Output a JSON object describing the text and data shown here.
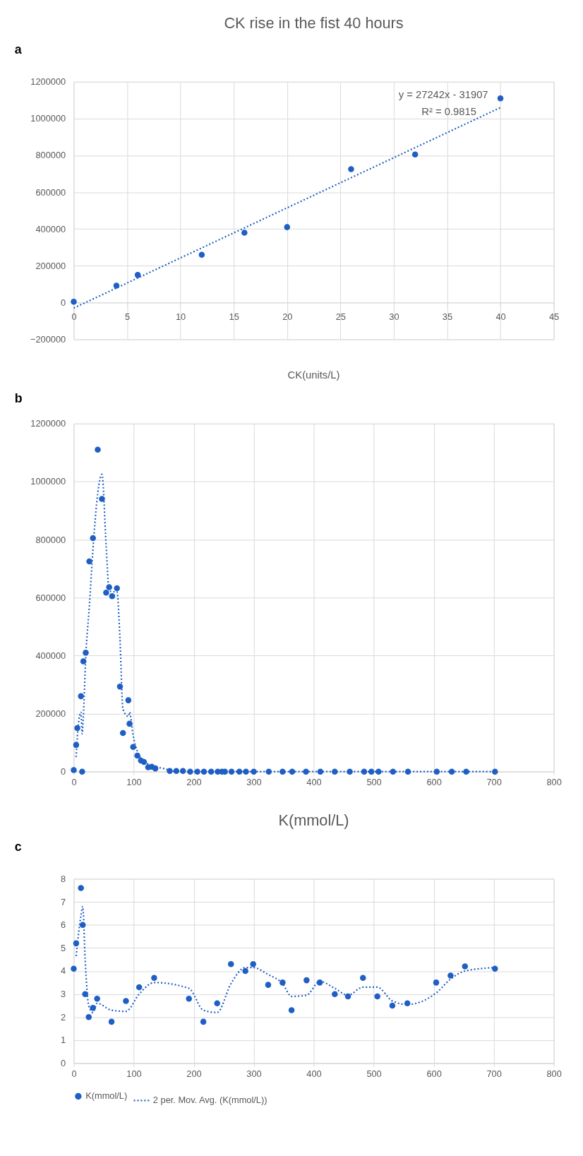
{
  "chart_data": [
    {
      "type": "scatter",
      "title": "CK rise in the fist 40 hours",
      "xlim": [
        0,
        45
      ],
      "xticks": [
        0,
        5,
        10,
        15,
        20,
        25,
        30,
        35,
        40,
        45
      ],
      "ylim": [
        -200000,
        1200000
      ],
      "yticks": [
        -200000,
        0,
        200000,
        400000,
        600000,
        800000,
        1000000,
        1200000
      ],
      "grid": true,
      "legend": false,
      "annotations": [
        "a",
        "y = 27242x - 31907",
        "R² = 0.9815"
      ],
      "series": [
        {
          "marker": "circle",
          "color": "#1f5fc4",
          "x": [
            0,
            4,
            6,
            12,
            16,
            20,
            26,
            32,
            40
          ],
          "values": [
            5000,
            92000,
            150000,
            260000,
            380000,
            410000,
            725000,
            805000,
            1110000
          ]
        },
        {
          "type": "line",
          "marker": "none",
          "color": "#1f5fc4",
          "line_style": "dotted",
          "x": [
            0,
            40
          ],
          "values": [
            -30000,
            1060000
          ]
        }
      ]
    },
    {
      "type": "scatter",
      "title": "CK(units/L)",
      "xlim": [
        0,
        800
      ],
      "xticks": [
        0,
        100,
        200,
        300,
        400,
        500,
        600,
        700,
        800
      ],
      "ylim": [
        0,
        1200000
      ],
      "yticks": [
        0,
        200000,
        400000,
        600000,
        800000,
        1000000,
        1200000
      ],
      "grid": true,
      "legend": false,
      "annotations": [
        "b"
      ],
      "series": [
        {
          "marker": "circle",
          "color": "#1f5fc4",
          "x": [
            0,
            4,
            6,
            12,
            14,
            16,
            20,
            26,
            32,
            40,
            47,
            54,
            59,
            64,
            72,
            77,
            82,
            91,
            93,
            99,
            106,
            112,
            117,
            124,
            130,
            136,
            160,
            171,
            182,
            194,
            206,
            217,
            229,
            240,
            247,
            252,
            263,
            276,
            287,
            300,
            325,
            348,
            364,
            387,
            411,
            435,
            460,
            484,
            496,
            508,
            532,
            557,
            605,
            630,
            654,
            702
          ],
          "values": [
            5000,
            92000,
            150000,
            260000,
            0,
            380000,
            410000,
            725000,
            805000,
            1110000,
            940000,
            617000,
            636000,
            605000,
            632000,
            293000,
            133000,
            246000,
            165000,
            85000,
            55000,
            38000,
            33000,
            15000,
            17000,
            11000,
            2000,
            2000,
            2000,
            0,
            0,
            0,
            0,
            0,
            0,
            0,
            0,
            0,
            0,
            0,
            0,
            0,
            0,
            0,
            0,
            0,
            0,
            0,
            0,
            0,
            0,
            0,
            0,
            0,
            0,
            0
          ]
        },
        {
          "type": "line",
          "marker": "none",
          "color": "#1f5fc4",
          "line_style": "dotted",
          "x": [
            4,
            6,
            12,
            14,
            16,
            20,
            26,
            32,
            40,
            47,
            54,
            59,
            64,
            72,
            77,
            82,
            91,
            93,
            99,
            106,
            112,
            117,
            124,
            130,
            136,
            160,
            171,
            182,
            194,
            206,
            217,
            229,
            240,
            247,
            252,
            263,
            276,
            287,
            300,
            325,
            348,
            364,
            387,
            411,
            435,
            460,
            484,
            496,
            508,
            532,
            557,
            605,
            630,
            654,
            702
          ],
          "values": [
            50000,
            120000,
            205000,
            130000,
            190000,
            395000,
            570000,
            765000,
            960000,
            1025000,
            780000,
            625000,
            620000,
            620000,
            460000,
            215000,
            190000,
            205000,
            125000,
            70000,
            45000,
            35000,
            25000,
            15000,
            15000,
            5000,
            0,
            0,
            0,
            0,
            0,
            0,
            0,
            0,
            0,
            0,
            0,
            0,
            0,
            0,
            0,
            0,
            0,
            0,
            0,
            0,
            0,
            0,
            0,
            0,
            0,
            0,
            0,
            0,
            0
          ]
        }
      ]
    },
    {
      "type": "scatter",
      "title": "K(mmol/L)",
      "xlim": [
        0,
        800
      ],
      "xticks": [
        0,
        100,
        200,
        300,
        400,
        500,
        600,
        700,
        800
      ],
      "ylim": [
        0,
        8
      ],
      "yticks": [
        0,
        1,
        2,
        3,
        4,
        5,
        6,
        7,
        8
      ],
      "grid": true,
      "legend": "bottom",
      "annotations": [
        "c"
      ],
      "series": [
        {
          "marker": "circle",
          "name": "K(mmol/L)",
          "color": "#1f5fc4",
          "x": [
            0,
            4,
            12,
            15,
            19,
            25,
            32,
            39,
            63,
            87,
            109,
            134,
            192,
            216,
            239,
            262,
            286,
            299,
            324,
            348,
            363,
            388,
            410,
            435,
            457,
            482,
            506,
            531,
            556,
            604,
            628,
            652,
            702
          ],
          "values": [
            4.1,
            5.2,
            7.6,
            6.0,
            3.0,
            2.0,
            2.4,
            2.8,
            1.8,
            2.7,
            3.3,
            3.7,
            2.8,
            1.8,
            2.6,
            4.3,
            4.0,
            4.3,
            3.4,
            3.5,
            2.3,
            3.6,
            3.5,
            3.0,
            2.9,
            3.7,
            2.9,
            2.5,
            2.6,
            3.5,
            3.8,
            4.2,
            4.1
          ]
        },
        {
          "type": "line",
          "marker": "none",
          "name": "2 per. Mov. Avg. (K(mmol/L))",
          "color": "#1f5fc4",
          "line_style": "dotted",
          "x": [
            4,
            12,
            15,
            19,
            25,
            32,
            39,
            63,
            87,
            109,
            134,
            192,
            216,
            239,
            262,
            286,
            299,
            324,
            348,
            363,
            388,
            410,
            435,
            457,
            482,
            506,
            531,
            556,
            604,
            628,
            652,
            702
          ],
          "values": [
            4.65,
            6.4,
            6.8,
            4.5,
            2.5,
            2.2,
            2.6,
            2.3,
            2.25,
            3.0,
            3.5,
            3.25,
            2.3,
            2.2,
            3.45,
            4.15,
            4.15,
            3.85,
            3.45,
            2.9,
            2.95,
            3.55,
            3.25,
            2.95,
            3.3,
            3.3,
            2.7,
            2.55,
            3.05,
            3.65,
            4.0,
            4.15
          ]
        }
      ]
    }
  ]
}
